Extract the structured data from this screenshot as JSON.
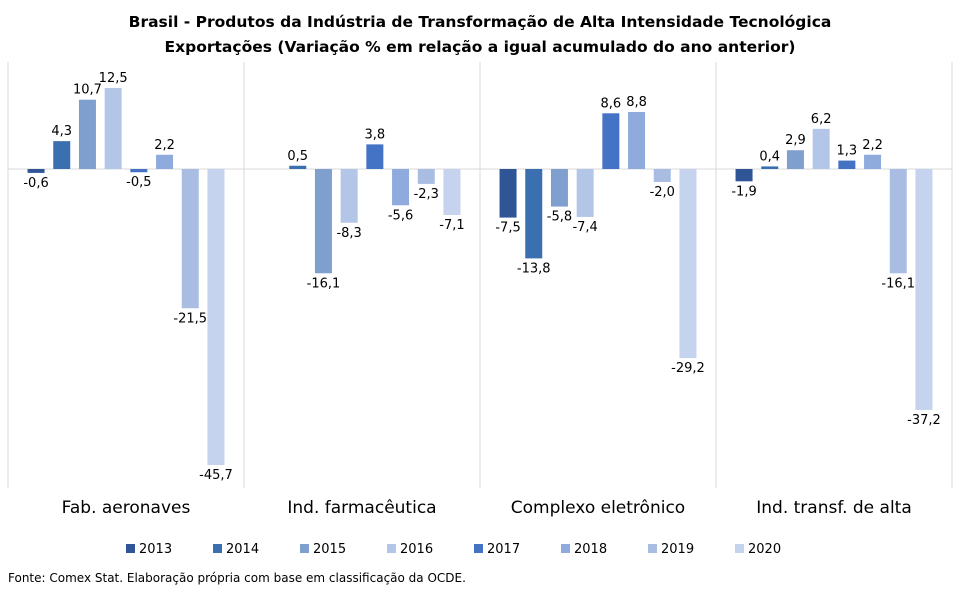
{
  "chart_data": {
    "type": "bar",
    "title": "Brasil - Produtos da Indústria de Transformação de Alta Intensidade Tecnológica",
    "subtitle": "Exportações (Variação % em relação a igual acumulado do ano anterior)",
    "categories": [
      "Fab. aeronaves",
      "Ind. farmacêutica",
      "Complexo eletrônico",
      "Ind. transf. de alta"
    ],
    "series": [
      {
        "name": "2013",
        "color": "#2f5597",
        "values": [
          -0.6,
          null,
          -7.5,
          -1.9
        ]
      },
      {
        "name": "2014",
        "color": "#3a6fb0",
        "values": [
          4.3,
          0.5,
          -13.8,
          0.4
        ]
      },
      {
        "name": "2015",
        "color": "#7f9fcf",
        "values": [
          10.7,
          -16.1,
          -5.8,
          2.9
        ]
      },
      {
        "name": "2016",
        "color": "#b4c6e7",
        "values": [
          12.5,
          -8.3,
          -7.4,
          6.2
        ]
      },
      {
        "name": "2017",
        "color": "#4472c4",
        "values": [
          -0.5,
          3.8,
          8.6,
          1.3
        ]
      },
      {
        "name": "2018",
        "color": "#8faadc",
        "values": [
          2.2,
          -5.6,
          8.8,
          2.2
        ]
      },
      {
        "name": "2019",
        "color": "#a9bde3",
        "values": [
          -21.5,
          -2.3,
          -2.0,
          -16.1
        ]
      },
      {
        "name": "2020",
        "color": "#c5d3ee",
        "values": [
          -45.7,
          -7.1,
          -29.2,
          -37.2
        ]
      }
    ],
    "labels": [
      [
        "-0,6",
        "",
        "-7,5",
        "-1,9"
      ],
      [
        "4,3",
        "0,5",
        "-13,8",
        "0,4"
      ],
      [
        "10,7",
        "-16,1",
        "-5,8",
        "2,9"
      ],
      [
        "12,5",
        "-8,3",
        "-7,4",
        "6,2"
      ],
      [
        "-0,5",
        "3,8",
        "8,6",
        "1,3"
      ],
      [
        "2,2",
        "-5,6",
        "8,8",
        "2,2"
      ],
      [
        "-21,5",
        "-2,3",
        "-2,0",
        "-16,1"
      ],
      [
        "-45,7",
        "-7,1",
        "-29,2",
        "-37,2"
      ]
    ],
    "ylim": [
      -50,
      20
    ],
    "grid": false,
    "legend_position": "bottom"
  },
  "source_note": "Fonte: Comex Stat. Elaboração própria com base em classificação da OCDE."
}
